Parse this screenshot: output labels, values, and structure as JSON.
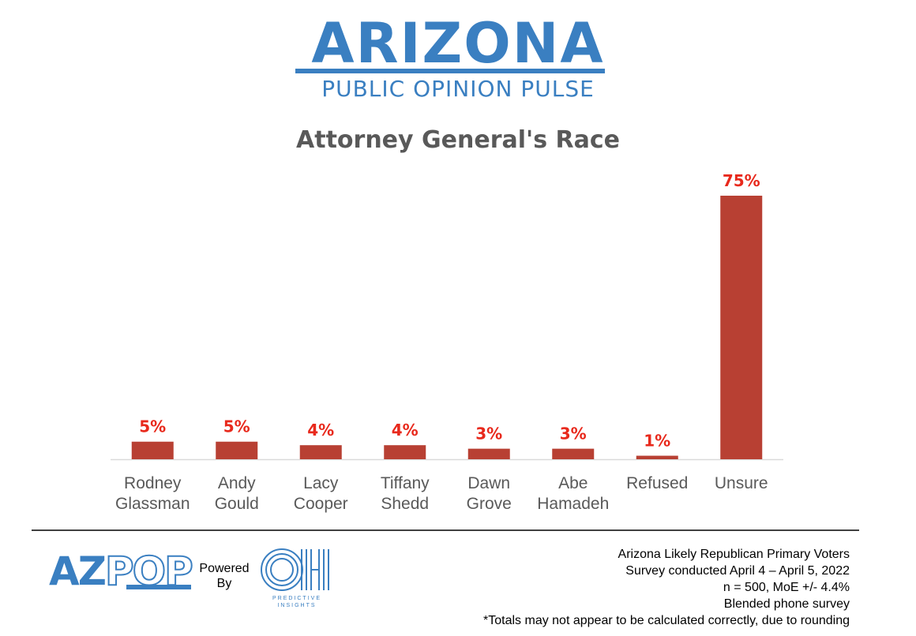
{
  "header": {
    "brand_title": "ARIZONA",
    "brand_subtitle": "PUBLIC OPINION PULSE"
  },
  "chart_data": {
    "type": "bar",
    "title": "Attorney General's Race",
    "categories": [
      [
        "Rodney",
        "Glassman"
      ],
      [
        "Andy",
        "Gould"
      ],
      [
        "Lacy",
        "Cooper"
      ],
      [
        "Tiffany",
        "Shedd"
      ],
      [
        "Dawn",
        "Grove"
      ],
      [
        "Abe",
        "Hamadeh"
      ],
      [
        "Refused"
      ],
      [
        "Unsure"
      ]
    ],
    "values": [
      5,
      5,
      4,
      4,
      3,
      3,
      1,
      75
    ],
    "value_labels": [
      "5%",
      "5%",
      "4%",
      "4%",
      "3%",
      "3%",
      "1%",
      "75%"
    ],
    "ylim": [
      0,
      75
    ],
    "grid": false,
    "bar_color": "#b84033",
    "label_color": "#e8291c"
  },
  "footer": {
    "logo_az": "AZ",
    "logo_pop": "POP",
    "powered_line1": "Powered",
    "powered_line2": "By",
    "partner_logo": "OH",
    "partner_tagline": "PREDICTIVE INSIGHTS",
    "notes": [
      "Arizona Likely Republican Primary Voters",
      "Survey conducted April 4 – April 5, 2022",
      "n = 500, MoE +/- 4.4%",
      "Blended phone survey",
      "*Totals may not appear to be calculated correctly, due to rounding"
    ],
    "brand_color": "#3a7fc1"
  }
}
